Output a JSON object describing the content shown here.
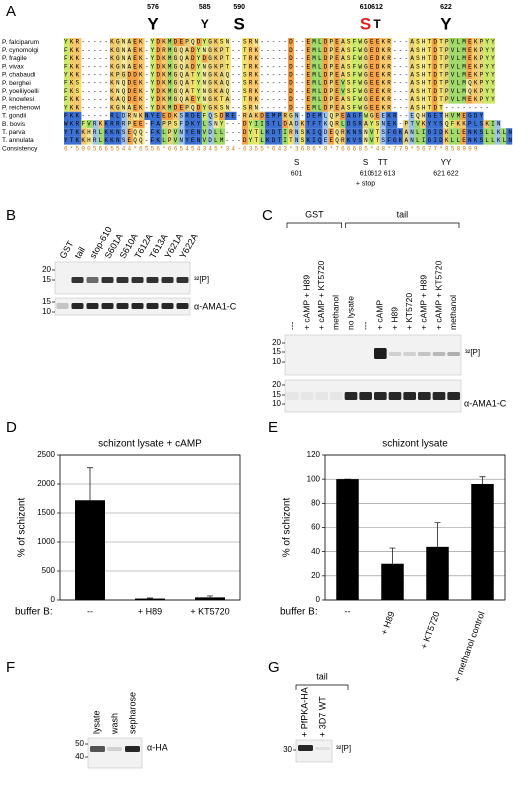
{
  "panel_a": {
    "letter": "A",
    "top_marks": [
      {
        "number": "576",
        "residue": "Y"
      },
      {
        "number": "585",
        "residue": "Y"
      },
      {
        "number": "590",
        "residue": "S"
      },
      {
        "number": "610",
        "residue": "S"
      },
      {
        "number": "612",
        "residue": "T"
      },
      {
        "number": "622",
        "residue": "Y"
      }
    ],
    "rows": [
      {
        "species": "P. falciparum",
        "sequence": "YKR-----KGNAEK-YDKMDEPQDYGKSN--SRN-----D--EMLDPEASFWGEEKR---ASHTDTPVLMEKPYY"
      },
      {
        "species": "P. cynomolgi",
        "sequence": "FKK-----KGNAEK-YDRMGQADYNGKPT--TRK-----D--EMLDPEASFWGEDKR---ASHTDTPVLMEKPYY"
      },
      {
        "species": "P. fragile",
        "sequence": "FKK-----KGNAEK-YDKMGQADYDGKPT--TRK-----D--EMLDPEASFWGEDKR---ASHTDTPVLMEKPYY"
      },
      {
        "species": "P. vivax",
        "sequence": "FKK-----KGNAEK-YDKMGQADYNGKPT--TRK-----D--EMLDPEASFWGEDKR---ASHTDTPVLMEKPYY"
      },
      {
        "species": "P. chabaudi",
        "sequence": "YKK-----KPGDDK-YDKMGQATYNGKAQ--SRK-----D--EMLDPEASFWGEEKR---ASHTDTPVLMEKPYY"
      },
      {
        "species": "P. berghei",
        "sequence": "FKS-----KNQDEK-YDKMGQATYNGKAQ--SRK-----D--EMLDPEVSFWGEEKR---ASHTDTPVLMQKPYY"
      },
      {
        "species": "P. yoeliiyoelli",
        "sequence": "FKS-----KNQDEK-YDKMGQATYNGKAQ--SRK-----D--EMLDPEVSFWGEEKR---ASHTDTPVLMQKPYY"
      },
      {
        "species": "P. knowlesi",
        "sequence": "FKK-----KAQDEK-YDKMGQAEYNGKTA--TRK-----D--EMLDPEASFWGEEKR---ASHTDTPVLMEKPYY"
      },
      {
        "species": "P. reichenowi",
        "sequence": "YKK-----KGNAEK-YDKMDEPQDYGKSN--SRN-----D--EMLDPEASFWGEEKR---ASHTDT--------"
      },
      {
        "species": "T. gondii",
        "sequence": "FKK-----RLDRNKNYEEDKSRDEFQSDRE-RAKDEMPRGN-DEMLQPEAGFWGEEKR--EQHGETHVMEGDY"
      },
      {
        "species": "B. bovis",
        "sequence": "WKRFVRKKRRRPEE-FAPPSFDKYLSNY---DYIISTLDADKTFTKQRLDSRAYSNEK-PTVKYYSQFKKPLSKIN"
      },
      {
        "species": "T. parva",
        "sequence": "YTKKHRLKKNSEQQ-FKLPVNYENVDLL---DYTLKDTIRNSKIQDEQRKNSNVTSFGKANLIGIDKLLENKSLLKLN"
      },
      {
        "species": "T. annulata",
        "sequence": "YTKKHRLKKNSEQQ-FKLPVNYENVDLM---DYTLKDTITNSKIQEEQRKVSNVTSFGKANLIGIDKLLENKSLLKLN"
      },
      {
        "species": "Consistency",
        "sequence": "6*5005665544*6556*665454345*34-6355*643*3686*8*766685*48*779*5677*858999"
      }
    ],
    "bottom_marks": [
      {
        "residues": "S",
        "numbers": "601"
      },
      {
        "residues": "S",
        "numbers": "610",
        "extra": "+ stop"
      },
      {
        "residues": "TT",
        "numbers": "612 613"
      },
      {
        "residues": "YY",
        "numbers": "621 622"
      }
    ]
  },
  "panel_b": {
    "letter": "B",
    "lanes": [
      "GST",
      "tail",
      "stop-610",
      "S601A",
      "S610A",
      "T612A",
      "T613A",
      "Y621A",
      "Y622A"
    ],
    "mw_top": [
      "20",
      "15"
    ],
    "mw_bottom": [
      "15",
      "10"
    ],
    "label_top": "³²[P]",
    "label_bottom": "α-AMA1-C"
  },
  "panel_c": {
    "letter": "C",
    "groups": [
      "GST",
      "tail"
    ],
    "lanes": [
      "---",
      "+ cAMP + H89",
      "+ cAMP + KT5720",
      "methanol",
      "no lysate",
      "---",
      "+ cAMP",
      "+ H89",
      "+ KT5720",
      "+ cAMP + H89",
      "+ cAMP + KT5720",
      "methanol"
    ],
    "mw_top": [
      "20",
      "15",
      "10"
    ],
    "mw_bottom": [
      "20",
      "15",
      "10"
    ],
    "label_top": "³²[P]",
    "label_bottom": "α-AMA1-C"
  },
  "chart_data": [
    {
      "type": "bar",
      "letter": "D",
      "title": "schizont lysate + cAMP",
      "y_label": "% of schizont",
      "x_prefix": "buffer B:",
      "categories": [
        "--",
        "+ H89",
        "+ KT5720"
      ],
      "values": [
        1720,
        25,
        45
      ],
      "errors": [
        560,
        10,
        25
      ],
      "color": "#000000",
      "ylim": [
        0,
        2500
      ],
      "yticks": [
        0,
        500,
        1000,
        1500,
        2000,
        2500
      ],
      "grid": true,
      "rotate_labels": false
    },
    {
      "type": "bar",
      "letter": "E",
      "title": "schizont lysate",
      "y_label": "% of schizont",
      "x_prefix": "buffer B:",
      "categories": [
        "--",
        "+ H89",
        "+ KT5720",
        "+ methanol control"
      ],
      "values": [
        100,
        30,
        44,
        96
      ],
      "errors": [
        0,
        13,
        20,
        6
      ],
      "color": "#000000",
      "ylim": [
        0,
        120
      ],
      "yticks": [
        0,
        20,
        40,
        60,
        80,
        100,
        120
      ],
      "grid": true,
      "rotate_labels": true
    }
  ],
  "panel_f": {
    "letter": "F",
    "lanes": [
      "lysate",
      "wash",
      "sepharose"
    ],
    "mw": [
      "50",
      "40"
    ],
    "label": "α-HA"
  },
  "panel_g": {
    "letter": "G",
    "group": "tail",
    "lanes": [
      "+ PfPKA-HA",
      "+ 3D7 WT"
    ],
    "mw": [
      "30"
    ],
    "label": "³²[P]"
  }
}
